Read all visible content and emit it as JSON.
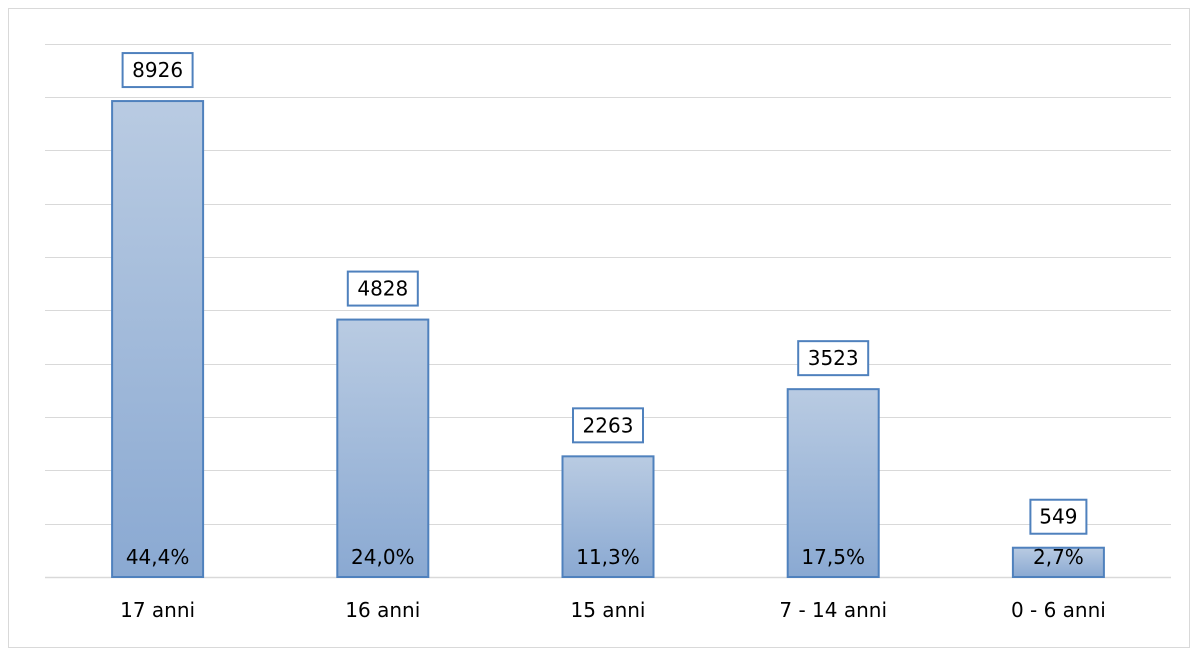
{
  "chart_data": {
    "type": "bar",
    "title": "",
    "xlabel": "",
    "ylabel": "",
    "categories": [
      "17 anni",
      "16 anni",
      "15 anni",
      "7 - 14 anni",
      "0 - 6 anni"
    ],
    "values": [
      8926,
      4828,
      2263,
      3523,
      549
    ],
    "percent_labels": [
      "44,4%",
      "24,0%",
      "11,3%",
      "17,5%",
      "2,7%"
    ],
    "ylim": [
      0,
      10000
    ],
    "grid": true,
    "gridline_step": 1000,
    "y_tick_labels_visible": false,
    "legend": "none",
    "colors": {
      "bar_top": "#b9cbe2",
      "bar_bottom": "#8aa9d2",
      "bar_border": "#4f81bd",
      "grid": "#d9d9d9"
    }
  }
}
